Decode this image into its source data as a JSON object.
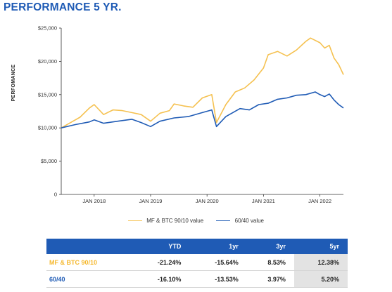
{
  "title": "PERFORMANCE 5 YR.",
  "chart_data": {
    "type": "line",
    "ylabel": "PERFOMANCE",
    "ylim": [
      0,
      25000
    ],
    "yticks": [
      0,
      5000,
      10000,
      15000,
      20000,
      25000
    ],
    "ytick_labels": [
      "0",
      "$5,000",
      "$10,000",
      "$15,000",
      "$20,000",
      "$25,000"
    ],
    "xlim": [
      "2017-06",
      "2022-06"
    ],
    "xticks": [
      "2018-01",
      "2019-01",
      "2020-01",
      "2021-01",
      "2022-01"
    ],
    "xtick_labels": [
      "JAN 2018",
      "JAN 2019",
      "JAN 2020",
      "JAN 2021",
      "JAN 2022"
    ],
    "grid": false,
    "legend_position": "bottom",
    "series": [
      {
        "name": "MF & BTC 90/10 value",
        "color": "#f5c150",
        "points": [
          [
            "2017-06",
            10000
          ],
          [
            "2017-08",
            10800
          ],
          [
            "2017-10",
            11600
          ],
          [
            "2017-12",
            13000
          ],
          [
            "2018-01",
            13500
          ],
          [
            "2018-03",
            12000
          ],
          [
            "2018-05",
            12700
          ],
          [
            "2018-07",
            12600
          ],
          [
            "2018-09",
            12300
          ],
          [
            "2018-11",
            12000
          ],
          [
            "2019-01",
            11000
          ],
          [
            "2019-03",
            12200
          ],
          [
            "2019-05",
            12600
          ],
          [
            "2019-06",
            13600
          ],
          [
            "2019-08",
            13300
          ],
          [
            "2019-10",
            13100
          ],
          [
            "2019-12",
            14500
          ],
          [
            "2020-02",
            15000
          ],
          [
            "2020-03",
            10800
          ],
          [
            "2020-05",
            13500
          ],
          [
            "2020-07",
            15400
          ],
          [
            "2020-09",
            16000
          ],
          [
            "2020-11",
            17200
          ],
          [
            "2021-01",
            19000
          ],
          [
            "2021-02",
            21000
          ],
          [
            "2021-04",
            21500
          ],
          [
            "2021-06",
            20800
          ],
          [
            "2021-08",
            21700
          ],
          [
            "2021-10",
            23000
          ],
          [
            "2021-11",
            23500
          ],
          [
            "2022-01",
            22800
          ],
          [
            "2022-02",
            22000
          ],
          [
            "2022-03",
            22400
          ],
          [
            "2022-04",
            20500
          ],
          [
            "2022-05",
            19500
          ],
          [
            "2022-06",
            18000
          ]
        ]
      },
      {
        "name": "60/40 value",
        "color": "#1f5bb5",
        "points": [
          [
            "2017-06",
            10000
          ],
          [
            "2017-09",
            10500
          ],
          [
            "2017-12",
            10900
          ],
          [
            "2018-01",
            11200
          ],
          [
            "2018-03",
            10700
          ],
          [
            "2018-06",
            11000
          ],
          [
            "2018-09",
            11300
          ],
          [
            "2018-11",
            10800
          ],
          [
            "2019-01",
            10200
          ],
          [
            "2019-03",
            11000
          ],
          [
            "2019-06",
            11500
          ],
          [
            "2019-09",
            11700
          ],
          [
            "2019-12",
            12300
          ],
          [
            "2020-02",
            12700
          ],
          [
            "2020-03",
            10200
          ],
          [
            "2020-05",
            11700
          ],
          [
            "2020-08",
            12900
          ],
          [
            "2020-10",
            12700
          ],
          [
            "2020-12",
            13500
          ],
          [
            "2021-02",
            13700
          ],
          [
            "2021-04",
            14300
          ],
          [
            "2021-06",
            14500
          ],
          [
            "2021-08",
            14900
          ],
          [
            "2021-10",
            15000
          ],
          [
            "2021-12",
            15400
          ],
          [
            "2022-01",
            15000
          ],
          [
            "2022-02",
            14700
          ],
          [
            "2022-03",
            15100
          ],
          [
            "2022-04",
            14200
          ],
          [
            "2022-05",
            13500
          ],
          [
            "2022-06",
            13000
          ]
        ]
      }
    ]
  },
  "table": {
    "columns": [
      "",
      "YTD",
      "1yr",
      "3yr",
      "5yr"
    ],
    "rows": [
      {
        "label": "MF & BTC 90/10",
        "values": [
          "-21.24%",
          "-15.64%",
          "8.53%",
          "12.38%"
        ]
      },
      {
        "label": "60/40",
        "values": [
          "-16.10%",
          "-13.53%",
          "3.97%",
          "5.20%"
        ]
      }
    ]
  }
}
